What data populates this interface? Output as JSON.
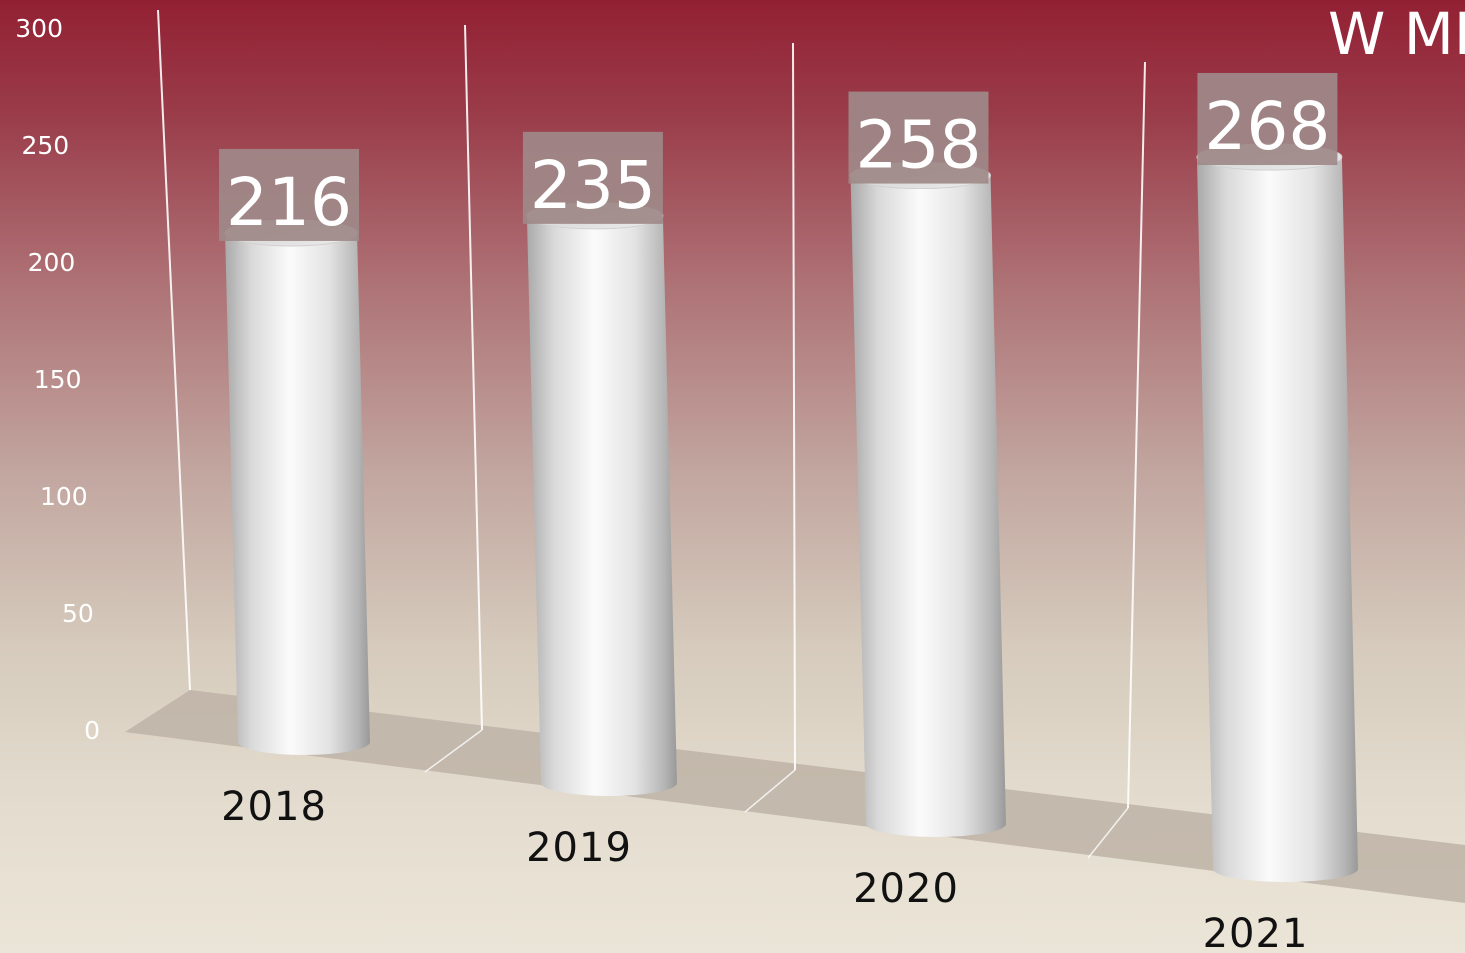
{
  "chart_data": {
    "type": "bar",
    "style": "3d-cylinder",
    "title": "W ML",
    "categories": [
      "2018",
      "2019",
      "2020",
      "2021"
    ],
    "values": [
      216,
      235,
      258,
      268
    ],
    "ylim": [
      0,
      300
    ],
    "yticks": [
      "0",
      "50",
      "100",
      "150",
      "200",
      "250",
      "300"
    ],
    "grid": true,
    "data_labels": true,
    "legend": "none",
    "colors": {
      "bar": "#e9e9e9",
      "label_box": "#9f8989",
      "background_top": "#922033",
      "background_bottom": "#ebe5d8",
      "floor": "#bdb3a6"
    }
  }
}
